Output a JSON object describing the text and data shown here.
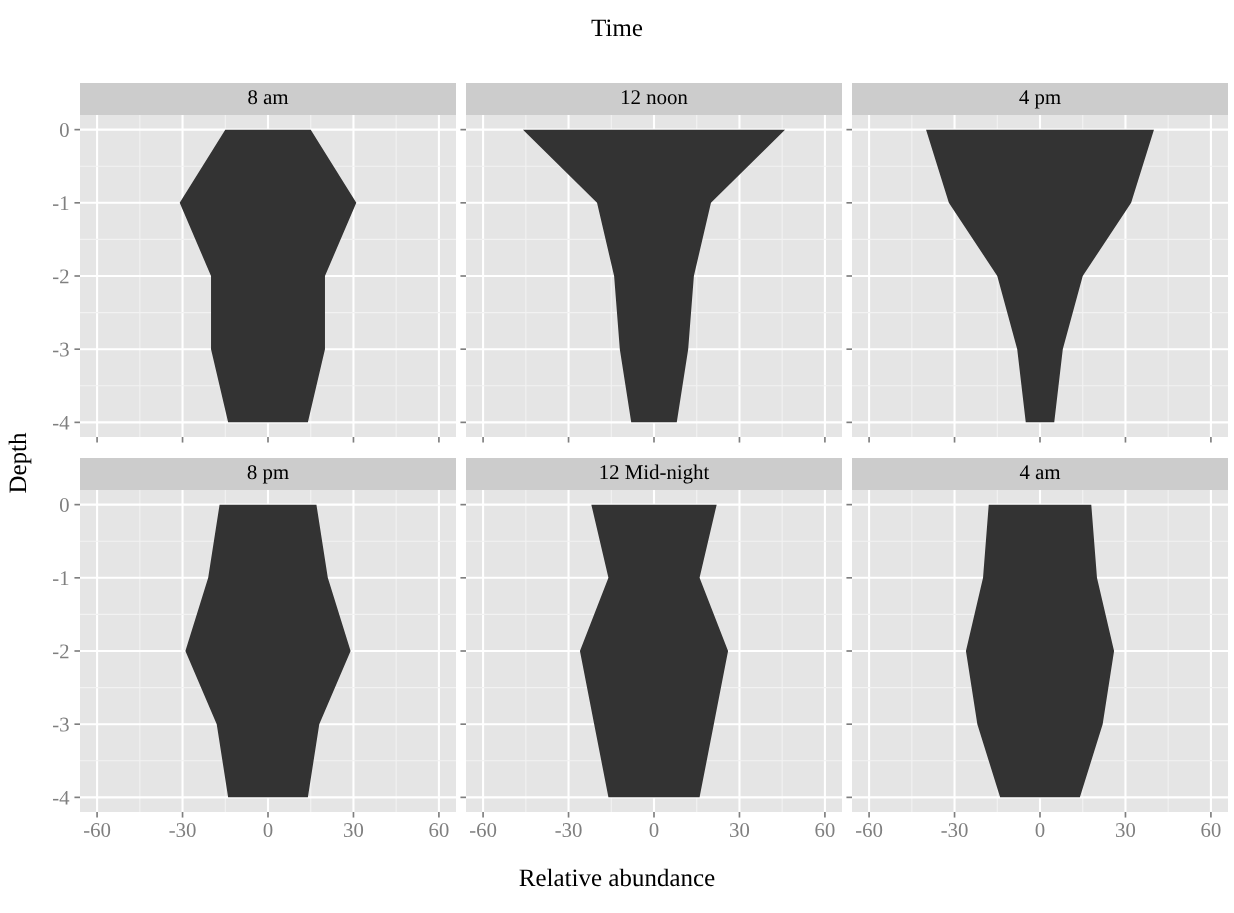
{
  "chart_data": [
    {
      "type": "area",
      "orientation": "horizontal",
      "title": "8 am",
      "annotations": [
        "Time"
      ],
      "ylabel": "Depth",
      "x": [
        0,
        -1,
        -2,
        -3,
        -4
      ],
      "series": [
        {
          "color": "#333333",
          "values": [
            -15,
            -31,
            -20,
            -20,
            -14
          ]
        },
        {
          "color": "#333333",
          "values": [
            15,
            31,
            20,
            20,
            14
          ]
        }
      ],
      "xlim": [
        -66,
        66
      ],
      "xticks": [
        -60,
        -30,
        0,
        30,
        60
      ],
      "ylim": [
        -4.2,
        0.2
      ],
      "yticks": [
        0,
        -1,
        -2,
        -3,
        -4
      ],
      "grid": true,
      "tick_labels": "y"
    },
    {
      "type": "area",
      "orientation": "horizontal",
      "title": "12 noon",
      "x": [
        0,
        -1,
        -2,
        -3,
        -4
      ],
      "series": [
        {
          "color": "#333333",
          "values": [
            -46,
            -20,
            -14,
            -12,
            -8
          ]
        },
        {
          "color": "#333333",
          "values": [
            46,
            20,
            14,
            12,
            8
          ]
        }
      ],
      "xlim": [
        -66,
        66
      ],
      "xticks": [
        -60,
        -30,
        0,
        30,
        60
      ],
      "ylim": [
        -4.2,
        0.2
      ],
      "yticks": [
        0,
        -1,
        -2,
        -3,
        -4
      ],
      "grid": true,
      "tick_labels": false
    },
    {
      "type": "area",
      "orientation": "horizontal",
      "title": "4 pm",
      "x": [
        0,
        -1,
        -2,
        -3,
        -4
      ],
      "series": [
        {
          "color": "#333333",
          "values": [
            -40,
            -32,
            -15,
            -8,
            -5
          ]
        },
        {
          "color": "#333333",
          "values": [
            40,
            32,
            15,
            8,
            5
          ]
        }
      ],
      "xlim": [
        -66,
        66
      ],
      "xticks": [
        -60,
        -30,
        0,
        30,
        60
      ],
      "ylim": [
        -4.2,
        0.2
      ],
      "yticks": [
        0,
        -1,
        -2,
        -3,
        -4
      ],
      "grid": true,
      "tick_labels": false
    },
    {
      "type": "area",
      "orientation": "horizontal",
      "title": "8 pm",
      "x": [
        0,
        -1,
        -2,
        -3,
        -4
      ],
      "series": [
        {
          "color": "#333333",
          "values": [
            -17,
            -21,
            -29,
            -18,
            -14
          ]
        },
        {
          "color": "#333333",
          "values": [
            17,
            21,
            29,
            18,
            14
          ]
        }
      ],
      "xlim": [
        -66,
        66
      ],
      "xticks": [
        -60,
        -30,
        0,
        30,
        60
      ],
      "ylim": [
        -4.2,
        0.2
      ],
      "yticks": [
        0,
        -1,
        -2,
        -3,
        -4
      ],
      "grid": true
    },
    {
      "type": "area",
      "orientation": "horizontal",
      "title": "12 Mid-night",
      "xlabel": "Relative abundance",
      "x": [
        0,
        -1,
        -2,
        -3,
        -4
      ],
      "series": [
        {
          "color": "#333333",
          "values": [
            -22,
            -16,
            -26,
            -21,
            -16
          ]
        },
        {
          "color": "#333333",
          "values": [
            22,
            16,
            26,
            21,
            16
          ]
        }
      ],
      "xlim": [
        -66,
        66
      ],
      "xticks": [
        -60,
        -30,
        0,
        30,
        60
      ],
      "ylim": [
        -4.2,
        0.2
      ],
      "yticks": [
        0,
        -1,
        -2,
        -3,
        -4
      ],
      "grid": true,
      "tick_labels": "x"
    },
    {
      "type": "area",
      "orientation": "horizontal",
      "title": "4 am",
      "x": [
        0,
        -1,
        -2,
        -3,
        -4
      ],
      "series": [
        {
          "color": "#333333",
          "values": [
            -18,
            -20,
            -26,
            -22,
            -14
          ]
        },
        {
          "color": "#333333",
          "values": [
            18,
            20,
            26,
            22,
            14
          ]
        }
      ],
      "xlim": [
        -66,
        66
      ],
      "xticks": [
        -60,
        -30,
        0,
        30,
        60
      ],
      "ylim": [
        -4.2,
        0.2
      ],
      "yticks": [
        0,
        -1,
        -2,
        -3,
        -4
      ],
      "grid": true,
      "tick_labels": "x"
    }
  ]
}
